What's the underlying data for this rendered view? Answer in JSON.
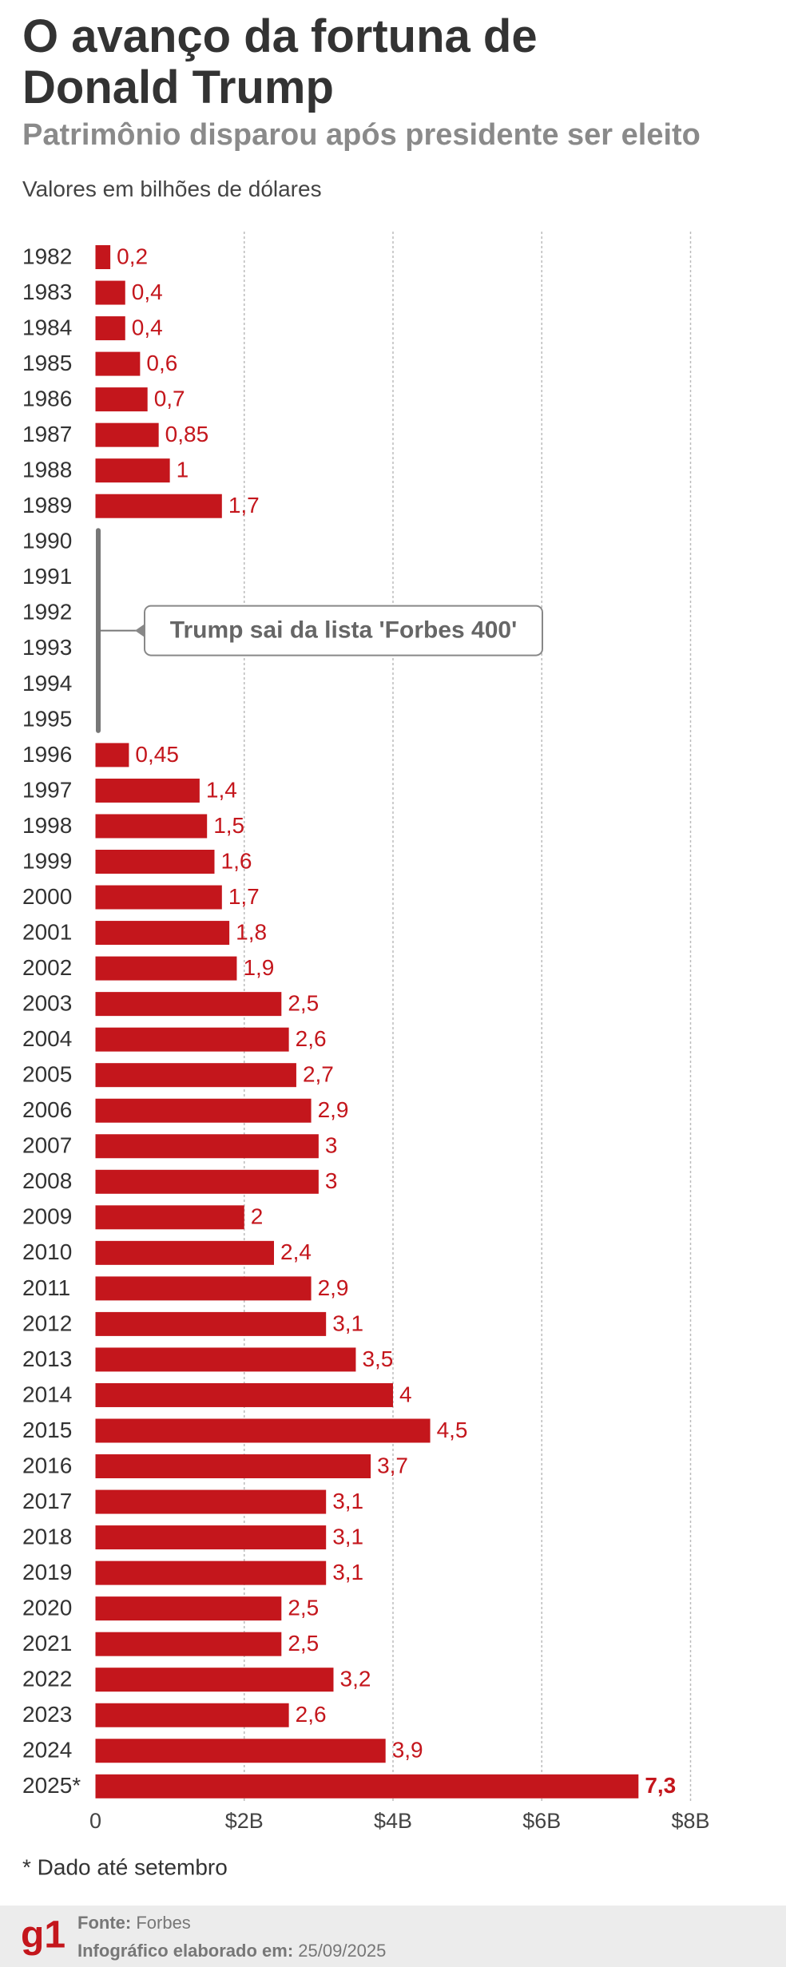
{
  "chart_data": {
    "type": "bar",
    "orientation": "horizontal",
    "title": "O avanço da fortuna de Donald Trump",
    "subtitle": "Patrimônio disparou após presidente ser eleito",
    "units_label": "Valores em bilhões de dólares",
    "categories": [
      "1982",
      "1983",
      "1984",
      "1985",
      "1986",
      "1987",
      "1988",
      "1989",
      "1990",
      "1991",
      "1992",
      "1993",
      "1994",
      "1995",
      "1996",
      "1997",
      "1998",
      "1999",
      "2000",
      "2001",
      "2002",
      "2003",
      "2004",
      "2005",
      "2006",
      "2007",
      "2008",
      "2009",
      "2010",
      "2011",
      "2012",
      "2013",
      "2014",
      "2015",
      "2016",
      "2017",
      "2018",
      "2019",
      "2020",
      "2021",
      "2022",
      "2023",
      "2024",
      "2025*"
    ],
    "values": [
      0.2,
      0.4,
      0.4,
      0.6,
      0.7,
      0.85,
      1,
      1.7,
      null,
      null,
      null,
      null,
      null,
      null,
      0.45,
      1.4,
      1.5,
      1.6,
      1.7,
      1.8,
      1.9,
      2.5,
      2.6,
      2.7,
      2.9,
      3,
      3,
      2,
      2.4,
      2.9,
      3.1,
      3.5,
      4,
      4.5,
      3.7,
      3.1,
      3.1,
      3.1,
      2.5,
      2.5,
      3.2,
      2.6,
      3.9,
      7.3
    ],
    "value_labels": [
      "0,2",
      "0,4",
      "0,4",
      "0,6",
      "0,7",
      "0,85",
      "1",
      "1,7",
      null,
      null,
      null,
      null,
      null,
      null,
      "0,45",
      "1,4",
      "1,5",
      "1,6",
      "1,7",
      "1,8",
      "1,9",
      "2,5",
      "2,6",
      "2,7",
      "2,9",
      "3",
      "3",
      "2",
      "2,4",
      "2,9",
      "3,1",
      "3,5",
      "4",
      "4,5",
      "3,7",
      "3,1",
      "3,1",
      "3,1",
      "2,5",
      "2,5",
      "3,2",
      "2,6",
      "3,9",
      "7,3"
    ],
    "color": "#c4161c",
    "xlim": [
      0,
      8
    ],
    "xticks": [
      0,
      {
        "value": 2,
        "label": "$2B"
      },
      {
        "value": 4,
        "label": "$4B"
      },
      {
        "value": 6,
        "label": "$6B"
      },
      {
        "value": 8,
        "label": "$8B"
      }
    ],
    "grid": true,
    "annotation": "Trump sai da lista 'Forbes 400'",
    "footnote": "* Dado até setembro"
  },
  "footer": {
    "logo": "g1",
    "source_label": "Fonte:",
    "source": "Forbes",
    "date_label": "Infográfico elaborado em:",
    "date": "25/09/2025"
  }
}
